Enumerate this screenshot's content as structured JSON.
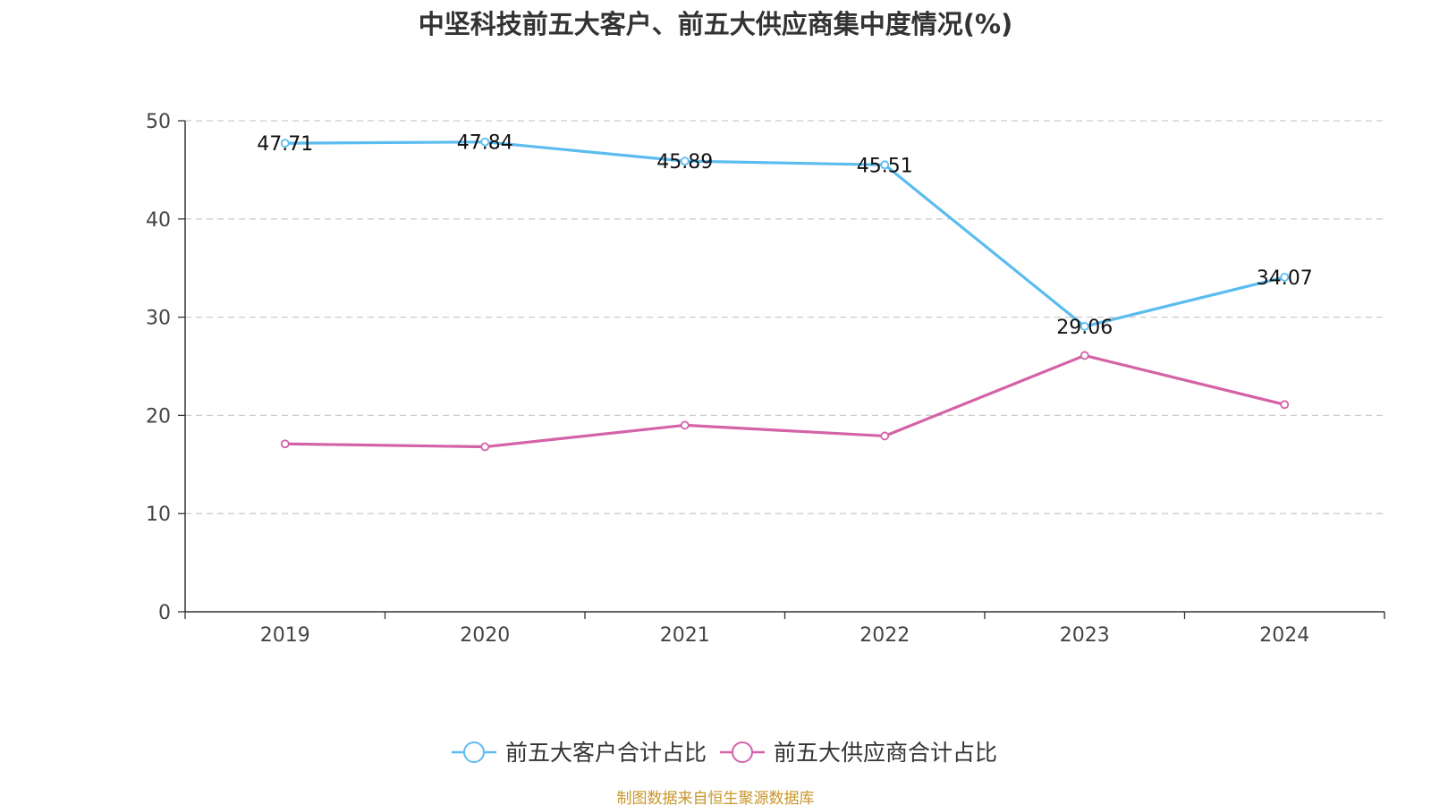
{
  "title": "中坚科技前五大客户、前五大供应商集中度情况(%)",
  "source_note": "制图数据来自恒生聚源数据库",
  "colors": {
    "customer": "#5bbcf0",
    "supplier": "#d462a8",
    "grid": "#cccccc",
    "axis": "#333333"
  },
  "chart_data": {
    "type": "line",
    "title": "中坚科技前五大客户、前五大供应商集中度情况(%)",
    "categories": [
      "2019",
      "2020",
      "2021",
      "2022",
      "2023",
      "2024"
    ],
    "ylim": [
      0,
      50
    ],
    "yticks": [
      "0",
      "10",
      "20",
      "30",
      "40",
      "50"
    ],
    "grid": true,
    "legend_position": "bottom-center",
    "series": [
      {
        "name": "前五大客户合计占比",
        "values": [
          47.71,
          47.84,
          45.89,
          45.51,
          29.06,
          34.07
        ],
        "labels": [
          "47.71",
          "47.84",
          "45.89",
          "45.51",
          "29.06",
          "34.07"
        ]
      },
      {
        "name": "前五大供应商合计占比",
        "values": [
          17.1,
          16.8,
          19.0,
          17.9,
          26.1,
          21.1
        ],
        "labels": []
      }
    ]
  }
}
